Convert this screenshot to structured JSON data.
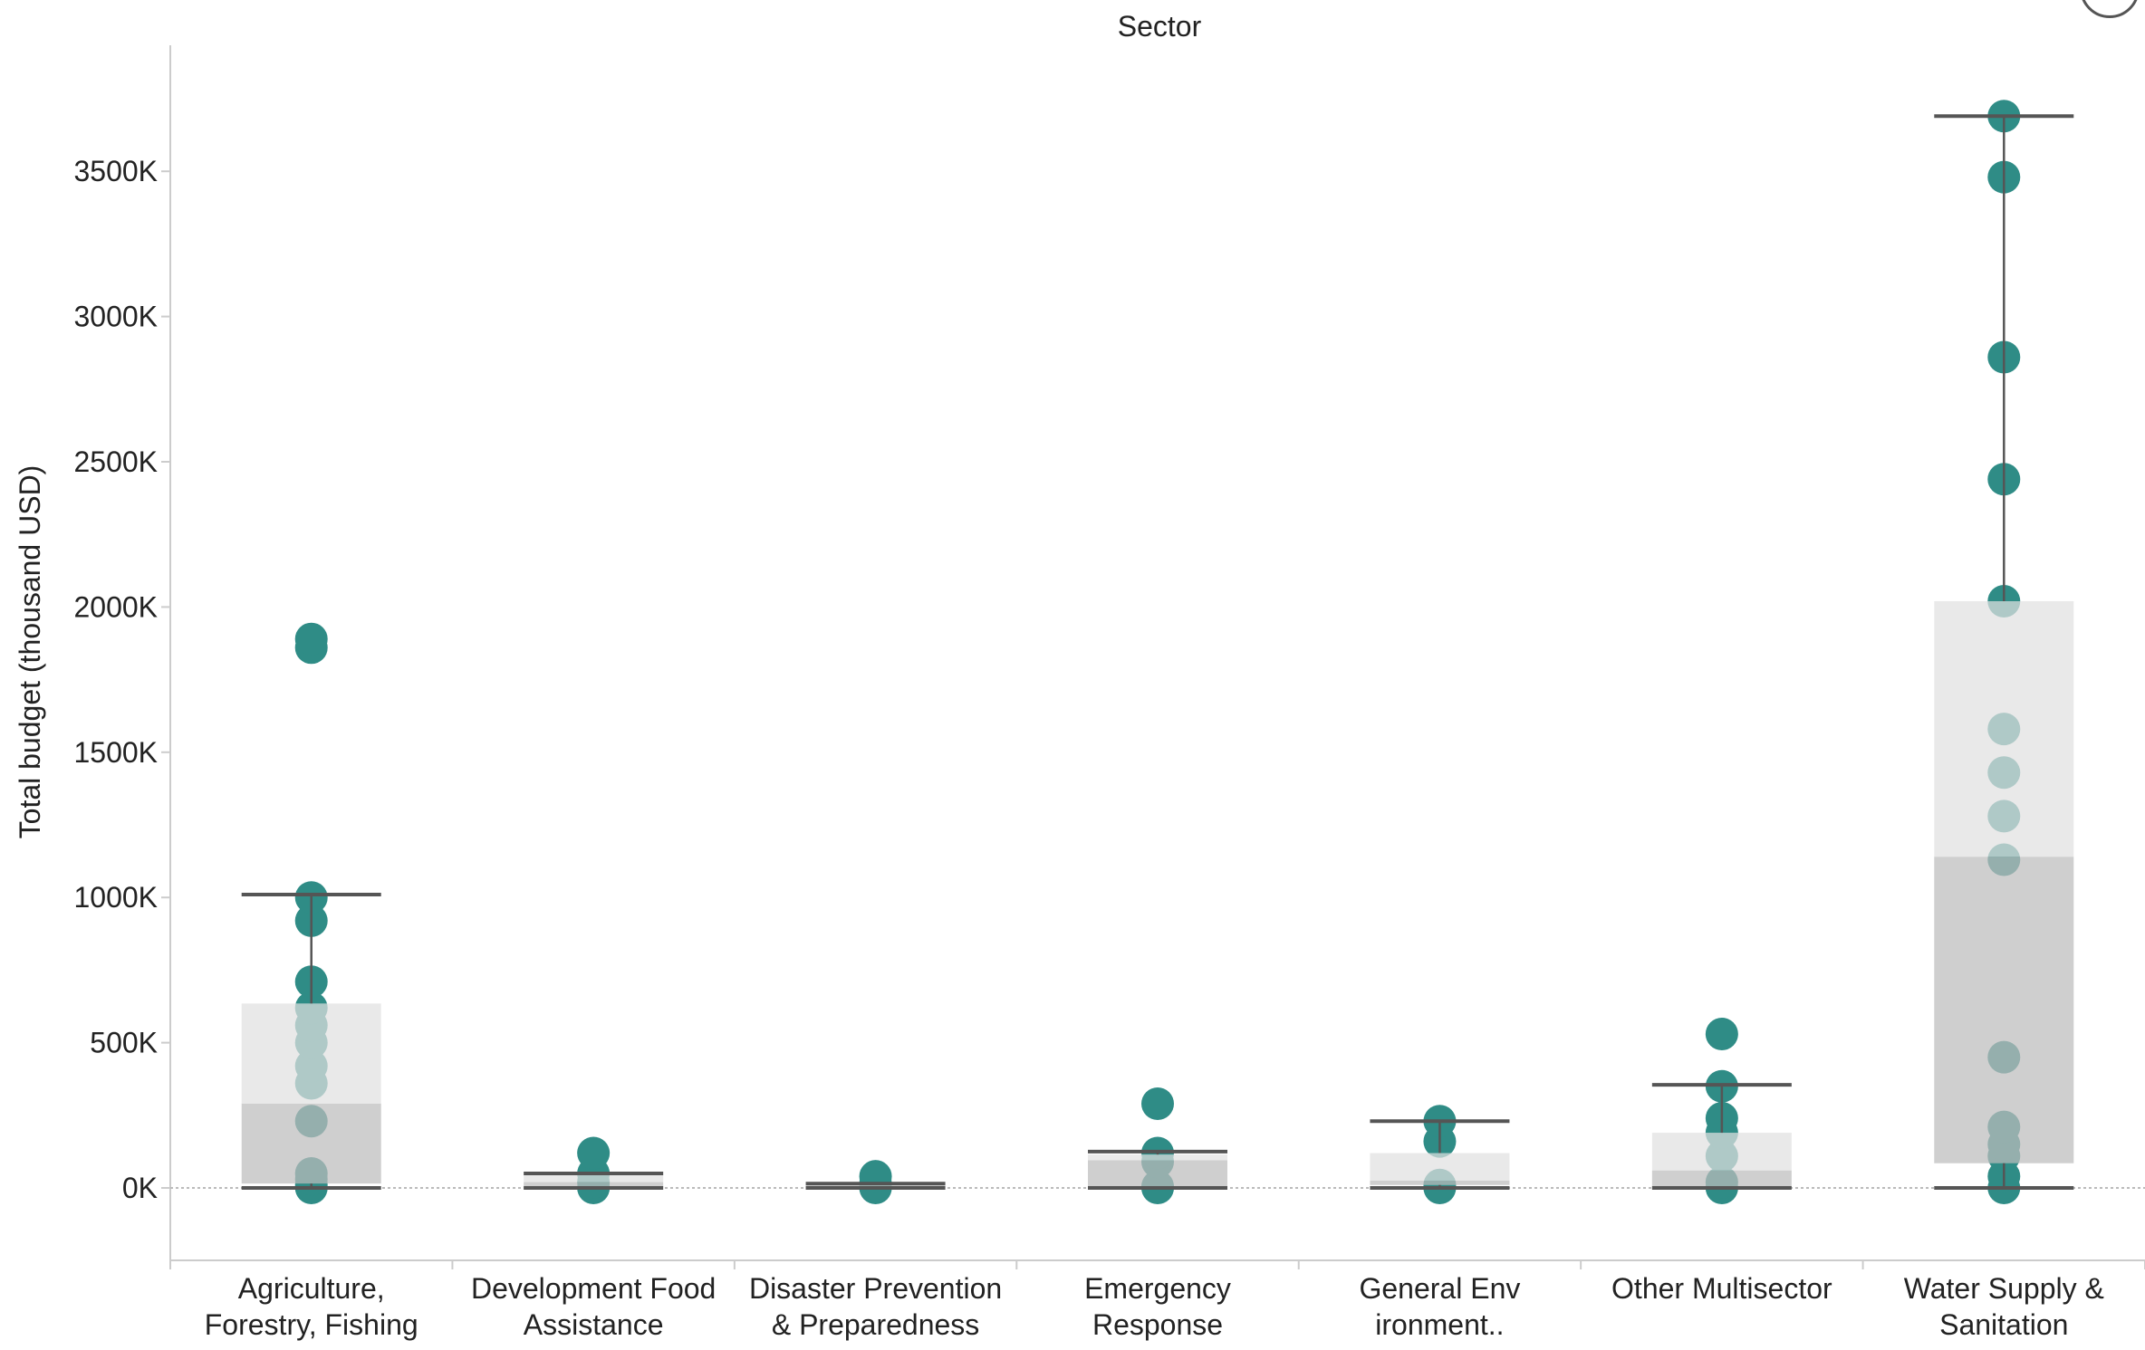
{
  "chart_data": {
    "type": "box",
    "title": "Sector",
    "ylabel": "Total budget (thousand USD)",
    "xlabel": "",
    "ylim": [
      -250,
      3850
    ],
    "yticks": [
      0,
      500,
      1000,
      1500,
      2000,
      2500,
      3000,
      3500
    ],
    "ytick_labels": [
      "0K",
      "500K",
      "1000K",
      "1500K",
      "2000K",
      "2500K",
      "3000K",
      "3500K"
    ],
    "grid": false,
    "zero_line": true,
    "categories": [
      [
        "Agriculture,",
        "Forestry, Fishing"
      ],
      [
        "Development Food",
        "Assistance"
      ],
      [
        "Disaster Prevention",
        "& Preparedness"
      ],
      [
        "Emergency",
        "Response"
      ],
      [
        "General Env",
        "ironment.."
      ],
      [
        "Other Multisector"
      ],
      [
        "Water Supply &",
        "Sanitation"
      ]
    ],
    "boxes": [
      {
        "lower_whisker": 0,
        "q1": 15,
        "median": 290,
        "q3": 635,
        "upper_whisker": 1010,
        "points": [
          0,
          10,
          30,
          50,
          230,
          360,
          420,
          500,
          560,
          620,
          710,
          920,
          1000,
          1860,
          1890
        ]
      },
      {
        "lower_whisker": 0,
        "q1": 5,
        "median": 20,
        "q3": 45,
        "upper_whisker": 50,
        "points": [
          0,
          20,
          50,
          120
        ]
      },
      {
        "lower_whisker": 0,
        "q1": 2,
        "median": 5,
        "q3": 10,
        "upper_whisker": 15,
        "points": [
          0,
          15,
          40
        ]
      },
      {
        "lower_whisker": 0,
        "q1": 5,
        "median": 95,
        "q3": 115,
        "upper_whisker": 125,
        "points": [
          0,
          5,
          90,
          120,
          290
        ]
      },
      {
        "lower_whisker": 0,
        "q1": 10,
        "median": 25,
        "q3": 120,
        "upper_whisker": 230,
        "points": [
          0,
          10,
          160,
          230
        ]
      },
      {
        "lower_whisker": 0,
        "q1": 5,
        "median": 60,
        "q3": 190,
        "upper_whisker": 355,
        "points": [
          0,
          20,
          110,
          190,
          240,
          350,
          530
        ]
      },
      {
        "lower_whisker": 0,
        "q1": 85,
        "median": 1140,
        "q3": 2020,
        "upper_whisker": 3690,
        "points": [
          0,
          40,
          110,
          150,
          210,
          450,
          1130,
          1280,
          1430,
          1580,
          2020,
          2440,
          2860,
          3480,
          3690
        ]
      }
    ],
    "colors": {
      "point": "#2f8c86",
      "box_upper": "#e1e1e1",
      "box_lower": "#bdbdbd",
      "whisker": "#555555",
      "axis_text": "#222222",
      "divider": "#cccccc"
    }
  }
}
